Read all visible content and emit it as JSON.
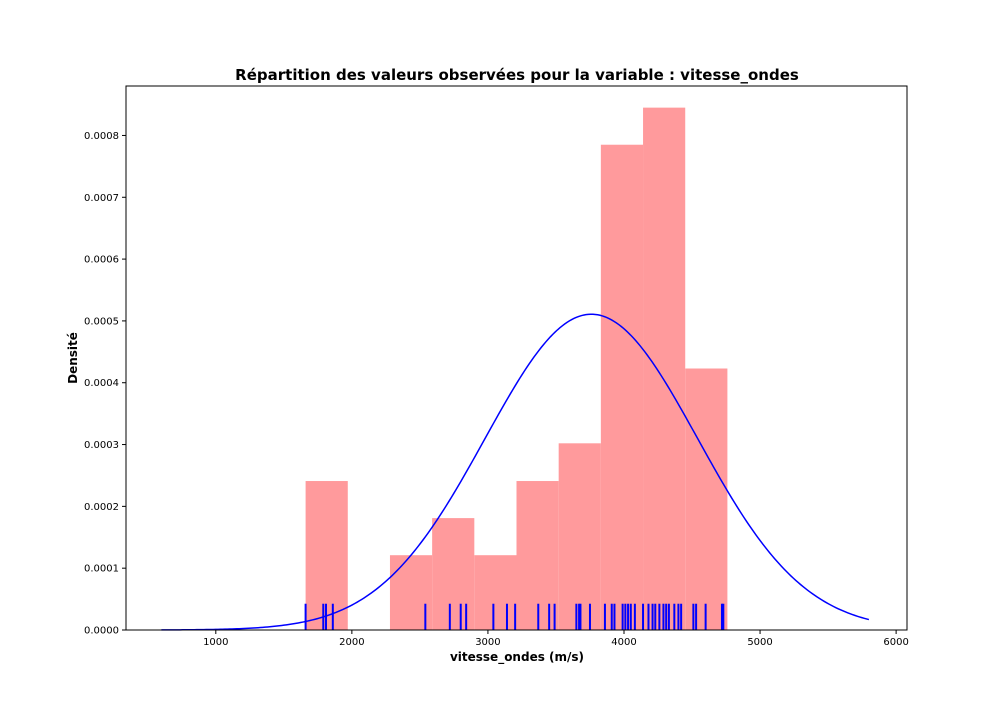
{
  "chart_data": {
    "type": "bar",
    "title": "Répartition des valeurs observées pour la variable : vitesse_ondes",
    "xlabel": "vitesse_ondes (m/s)",
    "ylabel": "Densité",
    "xlim": [
      340,
      6080
    ],
    "ylim": [
      0,
      0.00088
    ],
    "xticks": [
      1000,
      2000,
      3000,
      4000,
      5000,
      6000
    ],
    "xtick_labels": [
      "1000",
      "2000",
      "3000",
      "4000",
      "5000",
      "6000"
    ],
    "yticks": [
      0,
      0.0001,
      0.0002,
      0.0003,
      0.0004,
      0.0005,
      0.0006,
      0.0007,
      0.0008
    ],
    "ytick_labels": [
      "0.0000",
      "0.0001",
      "0.0002",
      "0.0003",
      "0.0004",
      "0.0005",
      "0.0006",
      "0.0007",
      "0.0008"
    ],
    "grid": false,
    "histogram": {
      "color": "#ff9a9c",
      "bins": [
        {
          "x0": 1660,
          "x1": 1970,
          "density": 0.000241
        },
        {
          "x0": 2280,
          "x1": 2590,
          "density": 0.000121
        },
        {
          "x0": 2590,
          "x1": 2900,
          "density": 0.000181
        },
        {
          "x0": 2900,
          "x1": 3210,
          "density": 0.000121
        },
        {
          "x0": 3210,
          "x1": 3520,
          "density": 0.000241
        },
        {
          "x0": 3520,
          "x1": 3830,
          "density": 0.000302
        },
        {
          "x0": 3830,
          "x1": 4140,
          "density": 0.000785
        },
        {
          "x0": 4140,
          "x1": 4450,
          "density": 0.000845
        },
        {
          "x0": 4450,
          "x1": 4760,
          "density": 0.000423
        }
      ]
    },
    "fitted_curve": {
      "color": "#0000ff",
      "distribution": "normal",
      "mean": 3760,
      "std": 781,
      "x_range": [
        600,
        5800
      ]
    },
    "rug": {
      "color": "#0000ff",
      "height": 4.25e-05,
      "values": [
        1660,
        1790,
        1810,
        1860,
        2540,
        2720,
        2800,
        2840,
        3040,
        3140,
        3200,
        3370,
        3450,
        3490,
        3650,
        3670,
        3680,
        3750,
        3860,
        3910,
        3930,
        3990,
        4010,
        4030,
        4050,
        4080,
        4140,
        4180,
        4210,
        4230,
        4260,
        4290,
        4310,
        4330,
        4370,
        4400,
        4420,
        4510,
        4530,
        4600,
        4720,
        4730
      ]
    }
  }
}
